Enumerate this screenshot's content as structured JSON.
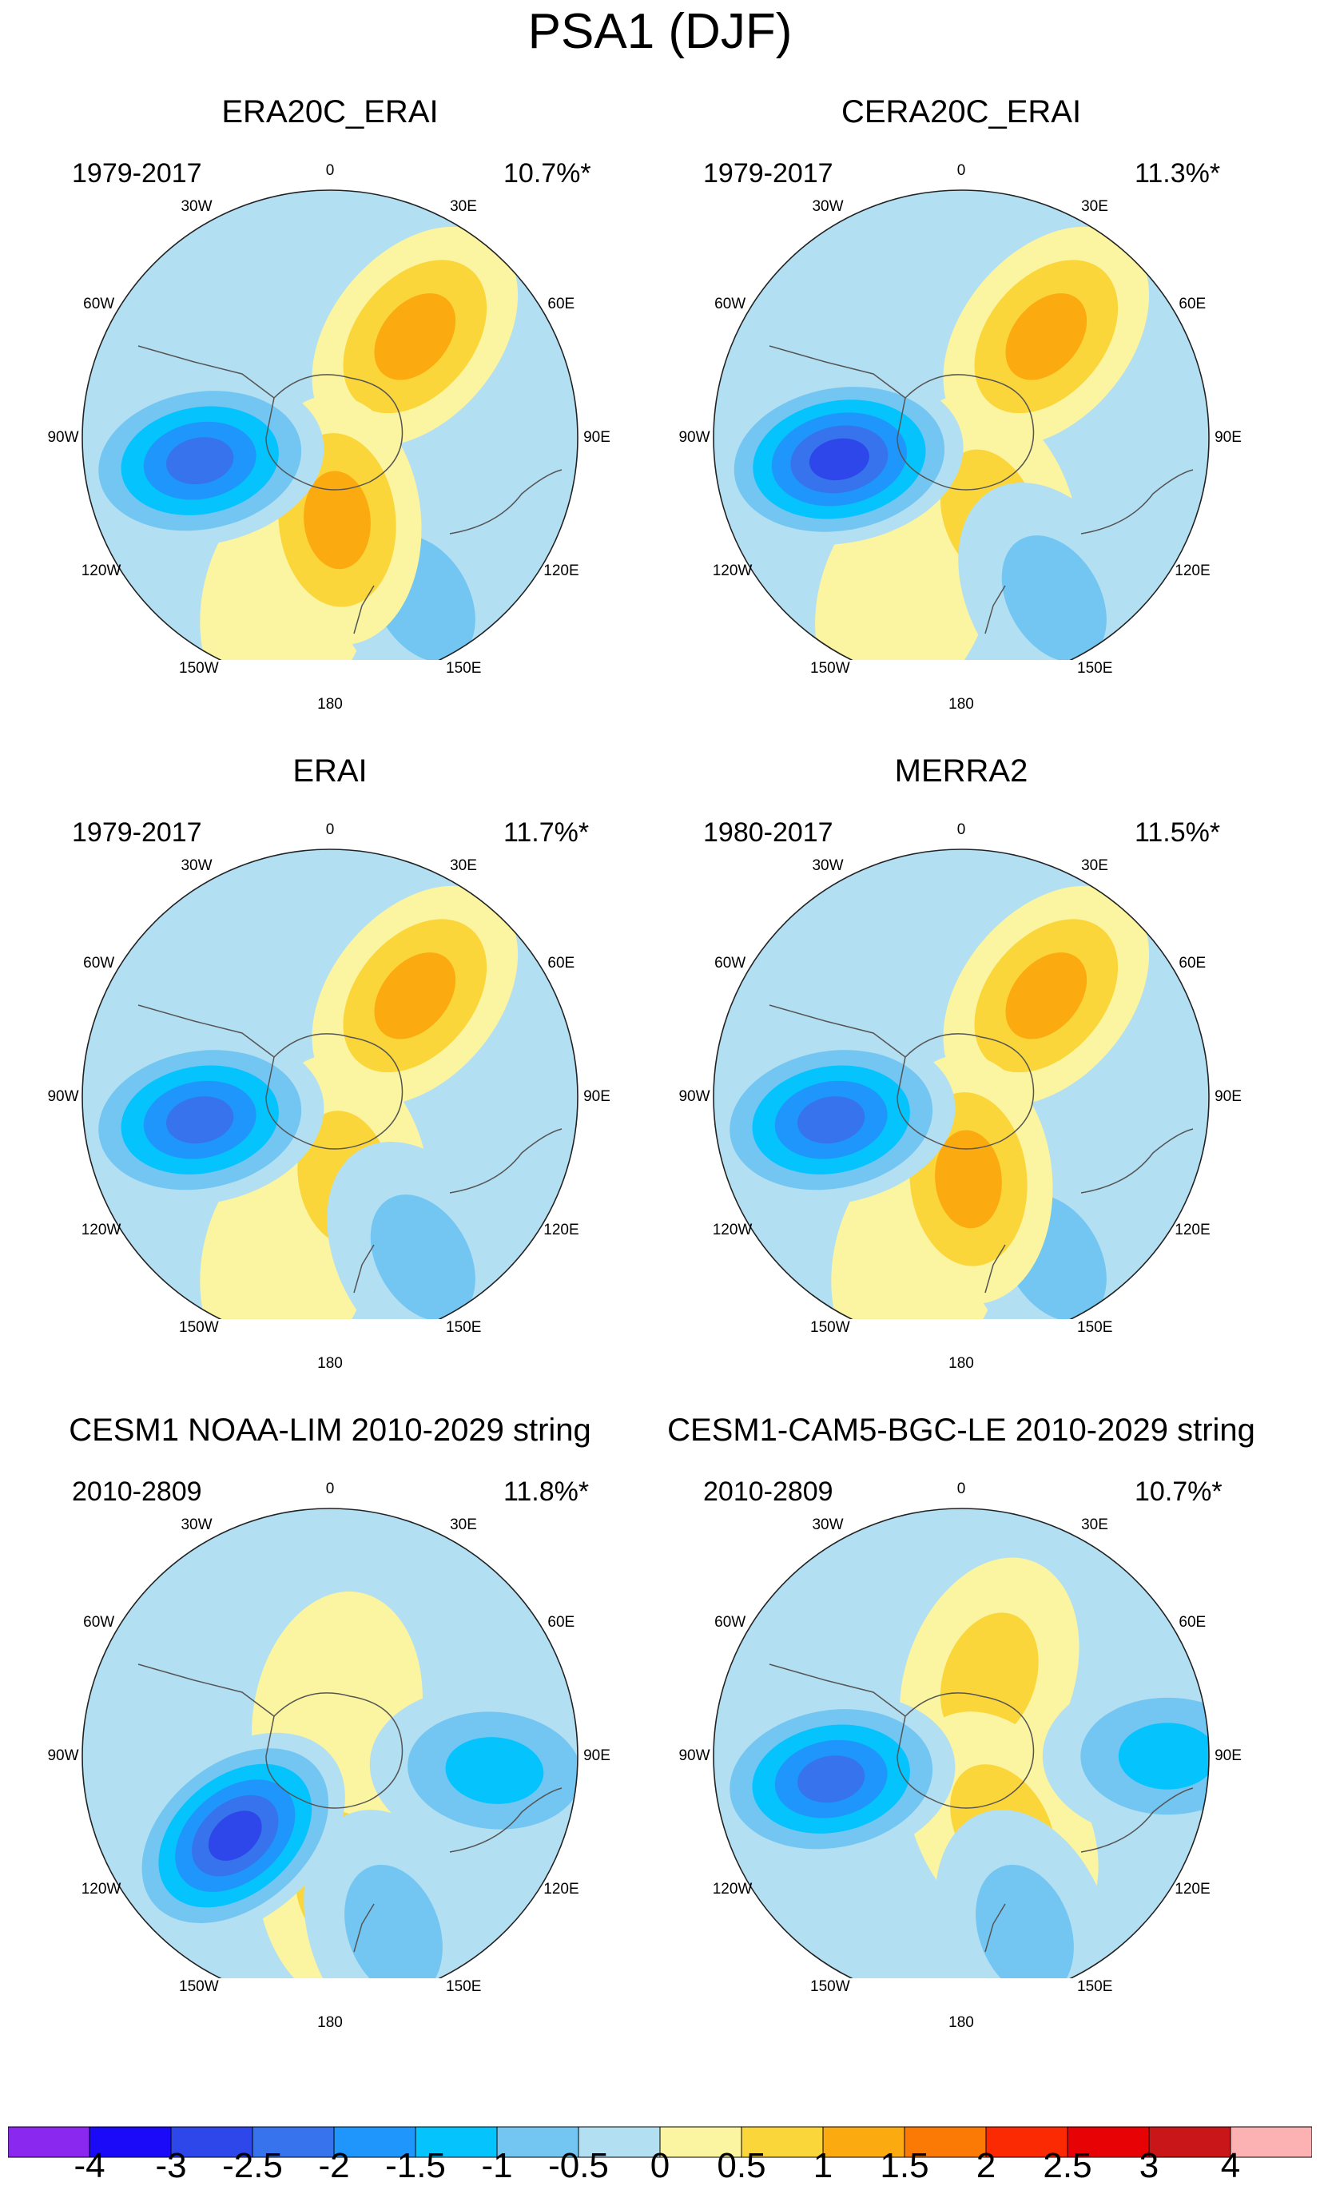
{
  "figure": {
    "title": "PSA1 (DJF)"
  },
  "chart_data": {
    "type": "polar_contour_maps",
    "title": "PSA1 (DJF)",
    "projection": "south-polar-stereographic",
    "longitude_labels": [
      "0",
      "30E",
      "60E",
      "90E",
      "120E",
      "150E",
      "180",
      "150W",
      "120W",
      "90W",
      "60W",
      "30W"
    ],
    "panels": [
      {
        "name": "ERA20C_ERAI",
        "period": "1979-2017",
        "variance_explained": "10.7%*",
        "features": [
          {
            "type": "low",
            "lon": -100,
            "lat": -58,
            "peak": -2.5
          },
          {
            "type": "high",
            "lon": 40,
            "lat": -58,
            "peak": 1.5
          },
          {
            "type": "high",
            "lon": 175,
            "lat": -70,
            "peak": 1.5
          },
          {
            "type": "low",
            "lon": 150,
            "lat": -45,
            "peak": -1
          },
          {
            "type": "high",
            "lon": -165,
            "lat": -50,
            "peak": 0.5
          }
        ]
      },
      {
        "name": "CERA20C_ERAI",
        "period": "1979-2017",
        "variance_explained": "11.3%*",
        "features": [
          {
            "type": "low",
            "lon": -100,
            "lat": -60,
            "peak": -3
          },
          {
            "type": "high",
            "lon": 40,
            "lat": -58,
            "peak": 1.5
          },
          {
            "type": "high",
            "lon": 160,
            "lat": -70,
            "peak": 1
          },
          {
            "type": "low",
            "lon": 150,
            "lat": -45,
            "peak": -1
          },
          {
            "type": "high",
            "lon": -160,
            "lat": -50,
            "peak": 0.5
          }
        ]
      },
      {
        "name": "ERAI",
        "period": "1979-2017",
        "variance_explained": "11.7%*",
        "features": [
          {
            "type": "low",
            "lon": -100,
            "lat": -58,
            "peak": -2.5
          },
          {
            "type": "high",
            "lon": 40,
            "lat": -58,
            "peak": 1.5
          },
          {
            "type": "high",
            "lon": 170,
            "lat": -70,
            "peak": 1
          },
          {
            "type": "low",
            "lon": 150,
            "lat": -45,
            "peak": -1
          },
          {
            "type": "high",
            "lon": -165,
            "lat": -50,
            "peak": 0.5
          }
        ]
      },
      {
        "name": "MERRA2",
        "period": "1980-2017",
        "variance_explained": "11.5%*",
        "features": [
          {
            "type": "low",
            "lon": -100,
            "lat": -58,
            "peak": -2.5
          },
          {
            "type": "high",
            "lon": 40,
            "lat": -58,
            "peak": 1.5
          },
          {
            "type": "high",
            "lon": 175,
            "lat": -70,
            "peak": 1.5
          },
          {
            "type": "low",
            "lon": 150,
            "lat": -45,
            "peak": -1
          },
          {
            "type": "high",
            "lon": -165,
            "lat": -50,
            "peak": 0.5
          }
        ]
      },
      {
        "name": "CESM1 NOAA-LIM 2010-2029 string",
        "period": "2010-2809",
        "variance_explained": "11.8%*",
        "features": [
          {
            "type": "low",
            "lon": -130,
            "lat": -60,
            "peak": -3
          },
          {
            "type": "high",
            "lon": 10,
            "lat": -80,
            "peak": 0.5
          },
          {
            "type": "high",
            "lon": 175,
            "lat": -60,
            "peak": 1
          },
          {
            "type": "low",
            "lon": 95,
            "lat": -50,
            "peak": -1.5
          },
          {
            "type": "low",
            "lon": 160,
            "lat": -45,
            "peak": -1
          }
        ]
      },
      {
        "name": "CESM1-CAM5-BGC-LE 2010-2029 string",
        "period": "2010-2809",
        "variance_explained": "10.7%*",
        "features": [
          {
            "type": "low",
            "lon": -100,
            "lat": -58,
            "peak": -2.5
          },
          {
            "type": "high",
            "lon": 20,
            "lat": -70,
            "peak": 1
          },
          {
            "type": "high",
            "lon": 150,
            "lat": -70,
            "peak": 1
          },
          {
            "type": "low",
            "lon": 90,
            "lat": -40,
            "peak": -1.5
          },
          {
            "type": "low",
            "lon": 160,
            "lat": -45,
            "peak": -1
          }
        ]
      }
    ],
    "colorbar": {
      "labels": [
        "-4",
        "-3",
        "-2.5",
        "-2",
        "-1.5",
        "-1",
        "-0.5",
        "0",
        "0.5",
        "1",
        "1.5",
        "2",
        "2.5",
        "3",
        "4"
      ],
      "colors": [
        "#8b28f0",
        "#1a0af8",
        "#2e47ea",
        "#3673ec",
        "#1f96fc",
        "#05c3fc",
        "#73c6f2",
        "#b3dff3",
        "#fbf4a0",
        "#fbd63a",
        "#fbaa10",
        "#fb7a06",
        "#fc2a03",
        "#e60205",
        "#c81619",
        "#fcb2b2"
      ]
    }
  }
}
